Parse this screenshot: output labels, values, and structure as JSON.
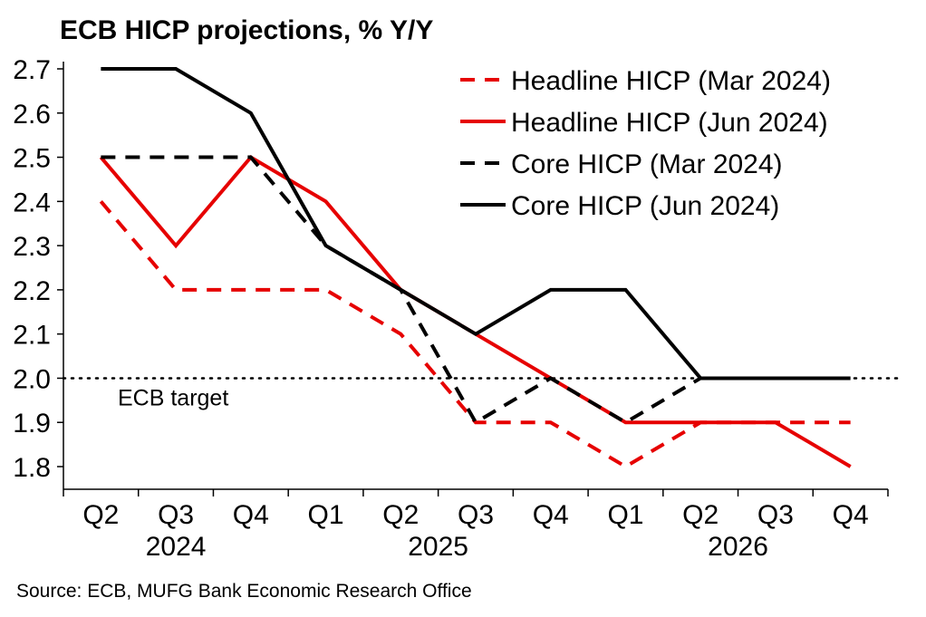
{
  "chart_data": {
    "type": "line",
    "title": "ECB HICP projections, % Y/Y",
    "categories": [
      "Q2",
      "Q3",
      "Q4",
      "Q1",
      "Q2",
      "Q3",
      "Q4",
      "Q1",
      "Q2",
      "Q3",
      "Q4"
    ],
    "year_labels": [
      {
        "label": "2024",
        "center_index": 1
      },
      {
        "label": "2025",
        "center_index": 4.5
      },
      {
        "label": "2026",
        "center_index": 8.5
      }
    ],
    "ylim": [
      1.8,
      2.7
    ],
    "yticks": [
      "1.8",
      "1.9",
      "2.0",
      "2.1",
      "2.2",
      "2.3",
      "2.4",
      "2.5",
      "2.6",
      "2.7"
    ],
    "series": [
      {
        "name": "Headline HICP (Mar 2024)",
        "color": "#e60000",
        "dash": true,
        "values": [
          2.4,
          2.2,
          2.2,
          2.2,
          2.1,
          1.9,
          1.9,
          1.8,
          1.9,
          1.9,
          1.9
        ]
      },
      {
        "name": "Headline HICP (Jun 2024)",
        "color": "#e60000",
        "dash": false,
        "values": [
          2.5,
          2.3,
          2.5,
          2.4,
          2.2,
          2.1,
          2.0,
          1.9,
          1.9,
          1.9,
          1.8
        ]
      },
      {
        "name": "Core HICP (Mar 2024)",
        "color": "#000000",
        "dash": true,
        "values": [
          2.5,
          2.5,
          2.5,
          2.3,
          2.2,
          1.9,
          2.0,
          1.9,
          2.0,
          null,
          null
        ]
      },
      {
        "name": "Core HICP (Jun 2024)",
        "color": "#000000",
        "dash": false,
        "values": [
          2.7,
          2.7,
          2.6,
          2.3,
          2.2,
          2.1,
          2.2,
          2.2,
          2.0,
          2.0,
          2.0
        ]
      }
    ],
    "target": {
      "value": 2.0,
      "label": "ECB target"
    },
    "legend_position": "top-right"
  },
  "source": "Source: ECB, MUFG Bank Economic Research Office"
}
